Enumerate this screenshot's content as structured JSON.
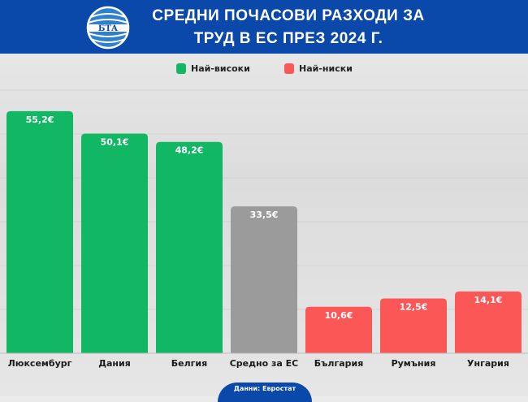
{
  "header": {
    "logo_text": "БТА",
    "title_line1": "СРЕДНИ ПОЧАСОВИ РАЗХОДИ ЗА",
    "title_line2": "ТРУД В ЕС ПРЕЗ 2024 Г."
  },
  "legend": [
    {
      "label": "Най-високи",
      "color": "#12b764"
    },
    {
      "label": "Най-ниски",
      "color": "#fb5757"
    }
  ],
  "source": "Данни: Евростат",
  "chart_data": {
    "type": "bar",
    "title": "СРЕДНИ ПОЧАСОВИ РАЗХОДИ ЗА ТРУД В ЕС ПРЕЗ 2024 Г.",
    "categories": [
      "Люксембург",
      "Дания",
      "Белгия",
      "Средно за ЕС",
      "България",
      "Румъния",
      "Унгария"
    ],
    "values": [
      55.2,
      50.1,
      48.2,
      33.5,
      10.6,
      12.5,
      14.1
    ],
    "data_labels": [
      "55,2€",
      "50,1€",
      "48,2€",
      "33,5€",
      "10,6€",
      "12,5€",
      "14,1€"
    ],
    "bar_colors": [
      "#12b764",
      "#12b764",
      "#12b764",
      "#9b9b9b",
      "#fb5757",
      "#fb5757",
      "#fb5757"
    ],
    "ylim": [
      0,
      60
    ],
    "grid": true,
    "legend_placement": "top",
    "unit": "€"
  }
}
